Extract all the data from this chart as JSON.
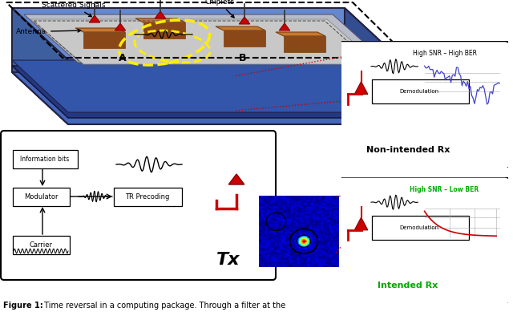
{
  "figure_width": 6.4,
  "figure_height": 3.94,
  "bg_color": "#ffffff",
  "labels": {
    "scattered": "Scattered Signals",
    "chiplets": "Chiplets",
    "antenna": "Antenna",
    "tx_label": "Tx",
    "A_label": "A",
    "B_label": "B",
    "non_intended": "Non-intended Rx",
    "intended": "Intended Rx",
    "high_snr_high_ber": "High SNR – High BER",
    "high_snr_low_ber": "High SNR – Low BER",
    "demodulation": "Demodulation",
    "info_bits": "Information bits",
    "modulator": "Modulator",
    "tr_precoding": "TR Precoding",
    "carrier": "Carrier",
    "caption_bold": "Figure 1:",
    "caption_rest": " Time reversal in a computing package. Through a filter at the"
  },
  "colors": {
    "pkg_top_face": "#6688cc",
    "pkg_inner_grey": "#b8bcc8",
    "pkg_substrate": "#c8c8c8",
    "pkg_front": "#3d5fa0",
    "pkg_right": "#334e90",
    "pkg_bottom_strip": "#4466bb",
    "pkg_dark_strip": "#233880",
    "chiplet_top": "#c87830",
    "chiplet_front": "#8a4818",
    "antenna_red": "#cc0000",
    "antenna_dark": "#880000",
    "yellow_dash": "#ffee00",
    "black": "#000000",
    "white": "#ffffff",
    "intended_green": "#00aa00",
    "plot_blue": "#4444cc",
    "plot_red": "#cc0000",
    "red_line": "#cc0000"
  }
}
